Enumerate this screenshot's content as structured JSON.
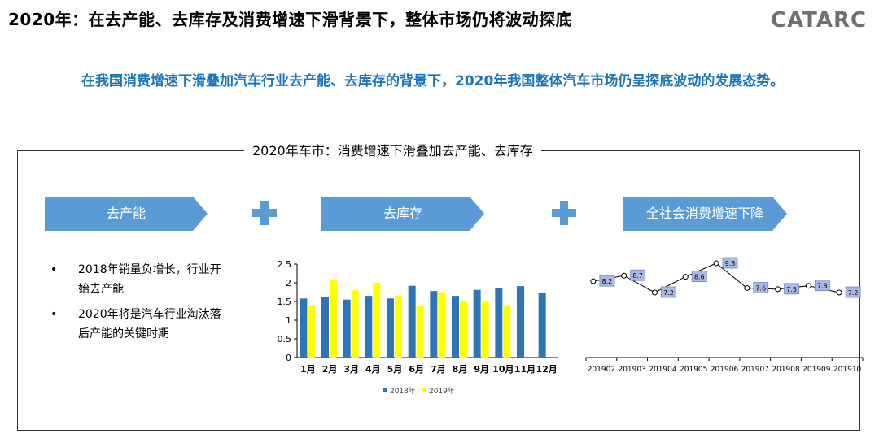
{
  "header": {
    "title": "2020年：在去产能、去库存及消费增速下滑背景下，整体市场仍将波动探底"
  },
  "logo": {
    "text": "CATARC"
  },
  "intro": "在我国消费增速下滑叠加汽车行业去产能、去库存的背景下，2020年我国整体汽车市场仍呈探底波动的发展态势。",
  "frame": {
    "title": "2020年车市：消费增速下滑叠加去产能、去库存"
  },
  "factors": [
    "去产能",
    "去库存",
    "全社会消费增速下降"
  ],
  "bullets": [
    "2018年销量负增长，行业开始去产能",
    "2020年将是汽车行业淘汰落后产能的关键时期"
  ],
  "bullet_symbol": "•",
  "colors": {
    "accent": "#5b9bd5",
    "series2018": "#2e75b6",
    "series2019": "#ffff00",
    "intro": "#1b75bb"
  },
  "chart_data": [
    {
      "type": "bar",
      "categories": [
        "1月",
        "2月",
        "3月",
        "4月",
        "5月",
        "6月",
        "7月",
        "8月",
        "9月",
        "10月",
        "11月",
        "12月"
      ],
      "series": [
        {
          "name": "2018年",
          "values": [
            1.58,
            1.62,
            1.55,
            1.65,
            1.58,
            1.92,
            1.78,
            1.65,
            1.81,
            1.86,
            1.91,
            1.72
          ]
        },
        {
          "name": "2019年",
          "values": [
            1.4,
            2.1,
            1.8,
            2.0,
            1.65,
            1.38,
            1.75,
            1.51,
            1.49,
            1.4,
            null,
            null
          ]
        }
      ],
      "yticks": [
        0,
        0.5,
        1,
        1.5,
        2,
        2.5
      ],
      "ylim": [
        0,
        2.5
      ],
      "legend": "bottom"
    },
    {
      "type": "line",
      "x": [
        "201902",
        "201903",
        "201904",
        "201905",
        "201906",
        "201907",
        "201908",
        "201909",
        "201910"
      ],
      "values": [
        8.2,
        8.7,
        7.2,
        8.6,
        9.8,
        7.6,
        7.5,
        7.8,
        7.2
      ],
      "data_labels": [
        "8.2",
        "8.7",
        "7.2",
        "8.6",
        "9.8",
        "7.6",
        "7.5",
        "7.8",
        "7.2"
      ]
    }
  ]
}
